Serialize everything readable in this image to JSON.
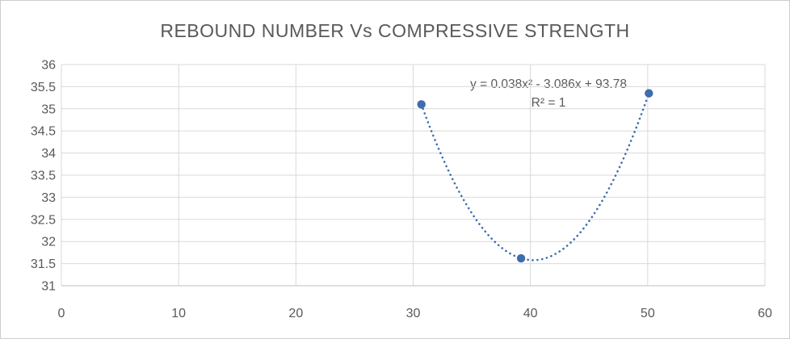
{
  "chart_data": {
    "type": "scatter",
    "title": "REBOUND NUMBER Vs COMPRESSIVE STRENGTH",
    "xlabel": "",
    "ylabel": "",
    "points": [
      {
        "x": 30.7,
        "y": 35.1
      },
      {
        "x": 39.2,
        "y": 31.62
      },
      {
        "x": 50.1,
        "y": 35.35
      }
    ],
    "trendline": {
      "kind": "polynomial",
      "order": 2,
      "style": "dotted",
      "equation_label": "y = 0.038x² - 3.086x + 93.78",
      "r_squared_label": "R² = 1"
    },
    "xlim": [
      0,
      60
    ],
    "ylim": [
      31,
      36
    ],
    "x_ticks": [
      0,
      10,
      20,
      30,
      40,
      50,
      60
    ],
    "y_ticks": [
      36,
      35.5,
      35,
      34.5,
      34,
      33.5,
      33,
      32.5,
      32,
      31.5,
      31
    ],
    "grid": true,
    "legend": "none",
    "colors": {
      "series": "#3E6CAD",
      "gridline": "#D9D9D9",
      "axis_line": "#BFBFBF",
      "text": "#595959",
      "background": "#FFFFFF",
      "border": "#CDCDCD"
    }
  }
}
